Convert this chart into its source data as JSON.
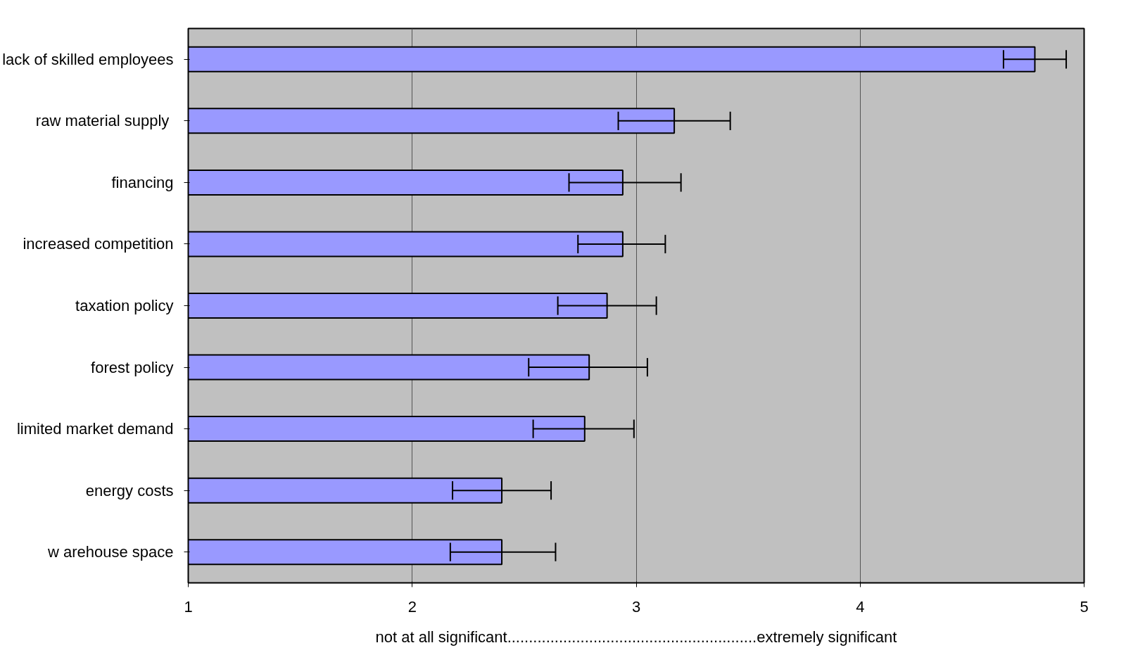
{
  "chart_data": {
    "type": "bar",
    "orientation": "horizontal",
    "categories": [
      "lack of skilled employees",
      "raw  material supply",
      "financing",
      "increased competition",
      "taxation policy",
      "forest policy",
      "limited market demand",
      "energy costs",
      "w arehouse space"
    ],
    "values": [
      4.78,
      3.17,
      2.94,
      2.94,
      2.87,
      2.79,
      2.77,
      2.4,
      2.4
    ],
    "errors": [
      [
        4.64,
        4.92
      ],
      [
        2.92,
        3.42
      ],
      [
        2.7,
        3.2
      ],
      [
        2.74,
        3.13
      ],
      [
        2.65,
        3.09
      ],
      [
        2.52,
        3.05
      ],
      [
        2.54,
        2.99
      ],
      [
        2.18,
        2.62
      ],
      [
        2.17,
        2.64
      ]
    ],
    "color": "#9999ff",
    "xlabel": "not at all significant..........................................................extremely significant",
    "xlim": [
      1,
      5
    ],
    "xticks": [
      1,
      2,
      3,
      4,
      5
    ],
    "grid": "x"
  }
}
